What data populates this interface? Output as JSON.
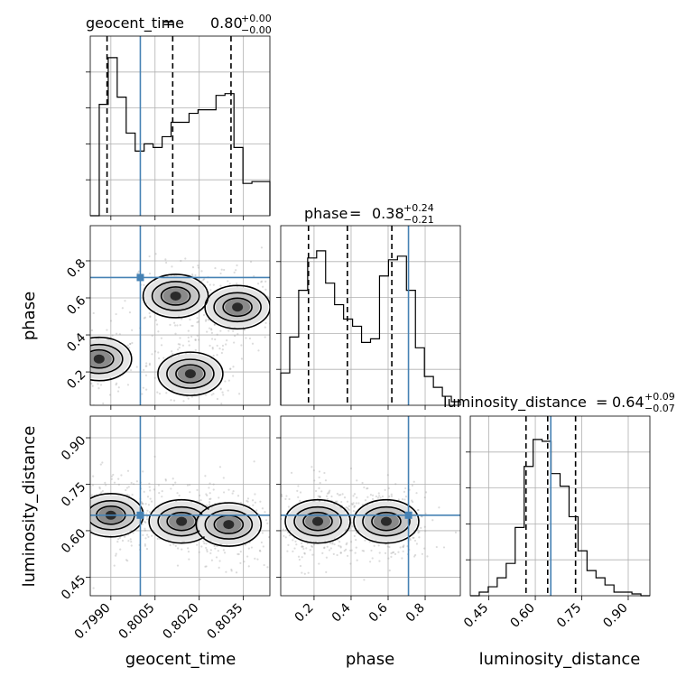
{
  "chart_data": {
    "type": "corner",
    "parameters": [
      "geocent_time",
      "phase",
      "luminosity_distance"
    ],
    "truths": {
      "geocent_time": 0.8,
      "phase": 0.71,
      "luminosity_distance": 0.65
    },
    "colors": {
      "truth": "#4682b4",
      "contour": "#000000",
      "grid": "#b0b0b0"
    },
    "titles": [
      {
        "name": "geocent_time",
        "median": "0.80",
        "upper": "+0.00",
        "lower": "−0.00"
      },
      {
        "name": "phase",
        "median": "0.38",
        "upper": "+0.24",
        "lower": "−0.21"
      },
      {
        "name": "luminosity_distance",
        "median": "0.64",
        "upper": "+0.09",
        "lower": "−0.07"
      }
    ],
    "axes": {
      "geocent_time": {
        "range": [
          0.7983,
          0.8044
        ],
        "ticks": [
          "0.7990",
          "0.8005",
          "0.8020",
          "0.8035"
        ]
      },
      "phase": {
        "range": [
          0.02,
          0.99
        ],
        "ticks": [
          "0.2",
          "0.4",
          "0.6",
          "0.8"
        ]
      },
      "luminosity_distance": {
        "range": [
          0.39,
          0.97
        ],
        "ticks": [
          "0.45",
          "0.60",
          "0.75",
          "0.90"
        ]
      }
    },
    "histograms": {
      "geocent_time": {
        "edges_start": 0.7983,
        "bin_width": 0.000305,
        "counts": [
          0.0,
          0.62,
          0.88,
          0.66,
          0.46,
          0.36,
          0.4,
          0.38,
          0.44,
          0.52,
          0.52,
          0.57,
          0.59,
          0.59,
          0.67,
          0.68,
          0.38,
          0.18,
          0.19,
          0.19
        ],
        "quantiles": [
          0.79887,
          0.8011,
          0.80308
        ]
      },
      "phase": {
        "edges_start": 0.02,
        "bin_width": 0.0485,
        "counts": [
          0.18,
          0.38,
          0.64,
          0.82,
          0.86,
          0.68,
          0.56,
          0.48,
          0.44,
          0.35,
          0.37,
          0.72,
          0.81,
          0.83,
          0.64,
          0.32,
          0.16,
          0.1,
          0.05,
          0.02
        ],
        "quantiles": [
          0.17,
          0.38,
          0.62
        ]
      },
      "luminosity_distance": {
        "edges_start": 0.39,
        "bin_width": 0.029,
        "counts": [
          0.0,
          0.02,
          0.05,
          0.1,
          0.18,
          0.38,
          0.72,
          0.87,
          0.86,
          0.68,
          0.61,
          0.44,
          0.25,
          0.14,
          0.1,
          0.06,
          0.02,
          0.02,
          0.01,
          0.0
        ],
        "quantiles": [
          0.57,
          0.64,
          0.73
        ]
      }
    },
    "pairs": [
      {
        "x": "geocent_time",
        "y": "phase",
        "modes": [
          [
            0.7986,
            0.27
          ],
          [
            0.8012,
            0.61
          ],
          [
            0.8033,
            0.55
          ],
          [
            0.8017,
            0.19
          ]
        ]
      },
      {
        "x": "geocent_time",
        "y": "luminosity_distance",
        "modes": [
          [
            0.799,
            0.65
          ],
          [
            0.8014,
            0.63
          ],
          [
            0.803,
            0.62
          ]
        ]
      },
      {
        "x": "phase",
        "y": "luminosity_distance",
        "modes": [
          [
            0.22,
            0.63
          ],
          [
            0.59,
            0.63
          ]
        ]
      }
    ]
  }
}
